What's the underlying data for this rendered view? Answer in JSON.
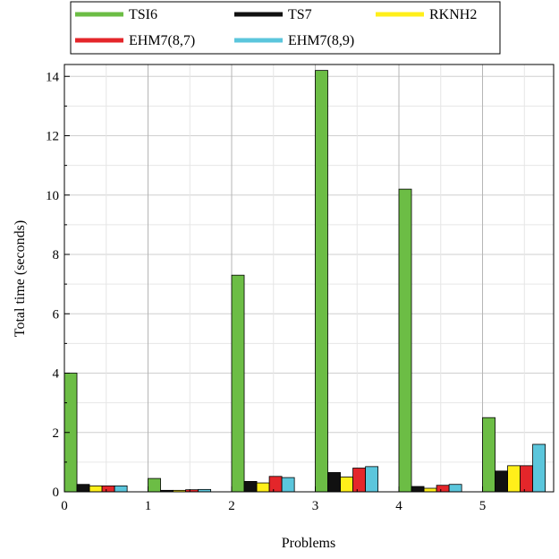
{
  "chart_data": {
    "type": "bar",
    "xlabel": "Problems",
    "ylabel": "Total time (seconds)",
    "ylim": [
      0,
      14.4
    ],
    "xlim": [
      0,
      5.85
    ],
    "x_ticks": [
      "0",
      "1",
      "2",
      "3",
      "4",
      "5"
    ],
    "y_ticks": [
      "0",
      "2",
      "4",
      "6",
      "8",
      "10",
      "12",
      "14"
    ],
    "grid": true,
    "legend_position": "top",
    "categories": [
      "0",
      "1",
      "2",
      "3",
      "4",
      "5"
    ],
    "series": [
      {
        "name": "TSI6",
        "color": "#6cbd45",
        "values": [
          4.0,
          0.45,
          7.3,
          14.2,
          10.2,
          2.5
        ]
      },
      {
        "name": "TS7",
        "color": "#111111",
        "values": [
          0.25,
          0.05,
          0.35,
          0.65,
          0.18,
          0.7
        ]
      },
      {
        "name": "RKNH2",
        "color": "#ffef1a",
        "values": [
          0.2,
          0.05,
          0.3,
          0.5,
          0.12,
          0.88
        ]
      },
      {
        "name": "EHM7(8,7)",
        "color": "#e4262a",
        "values": [
          0.2,
          0.07,
          0.52,
          0.8,
          0.22,
          0.88
        ]
      },
      {
        "name": "EHM7(8,9)",
        "color": "#5bc6dc",
        "values": [
          0.2,
          0.08,
          0.48,
          0.85,
          0.25,
          1.6
        ]
      }
    ]
  }
}
